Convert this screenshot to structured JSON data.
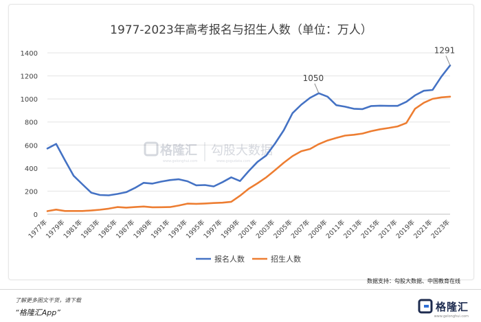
{
  "chart_data": {
    "type": "line",
    "title": "1977-2023年高考报名与招生人数（单位：万人）",
    "ylim": [
      0,
      1400
    ],
    "yticks": [
      0,
      200,
      400,
      600,
      800,
      1000,
      1200,
      1400
    ],
    "x": [
      1977,
      1978,
      1979,
      1980,
      1981,
      1982,
      1983,
      1984,
      1985,
      1986,
      1987,
      1988,
      1989,
      1990,
      1991,
      1992,
      1993,
      1994,
      1995,
      1996,
      1997,
      1998,
      1999,
      2000,
      2001,
      2002,
      2003,
      2004,
      2005,
      2006,
      2007,
      2008,
      2009,
      2010,
      2011,
      2012,
      2013,
      2014,
      2015,
      2016,
      2017,
      2018,
      2019,
      2020,
      2021,
      2022,
      2023
    ],
    "xtick_labels": [
      "1977年",
      "1979年",
      "1981年",
      "1983年",
      "1985年",
      "1987年",
      "1989年",
      "1991年",
      "1993年",
      "1995年",
      "1997年",
      "1999年",
      "2001年",
      "2003年",
      "2005年",
      "2007年",
      "2009年",
      "2011年",
      "2013年",
      "2015年",
      "2017年",
      "2019年",
      "2021年",
      "2023年"
    ],
    "series": [
      {
        "name": "报名人数",
        "color": "#4472C4",
        "values": [
          570,
          610,
          468,
          333,
          259,
          187,
          167,
          164,
          176,
          191,
          228,
          272,
          266,
          283,
          296,
          303,
          286,
          251,
          253,
          241,
          278,
          320,
          288,
          375,
          454,
          510,
          613,
          729,
          877,
          950,
          1010,
          1050,
          1020,
          946,
          933,
          915,
          912,
          939,
          942,
          940,
          940,
          975,
          1031,
          1071,
          1078,
          1193,
          1291
        ]
      },
      {
        "name": "招生人数",
        "color": "#ED7D31",
        "values": [
          27,
          40,
          28,
          28,
          28,
          32,
          39,
          48,
          62,
          57,
          62,
          67,
          60,
          61,
          62,
          75,
          92,
          90,
          93,
          97,
          100,
          108,
          160,
          221,
          268,
          320,
          382,
          447,
          504,
          546,
          566,
          608,
          640,
          662,
          682,
          689,
          700,
          721,
          737,
          748,
          762,
          791,
          915,
          967,
          1001,
          1014,
          1020
        ]
      }
    ],
    "annotations": [
      {
        "x": 2008,
        "label": "1050"
      },
      {
        "x": 2023,
        "label": "1291"
      }
    ],
    "legend_position": "bottom",
    "grid": true
  },
  "watermark": {
    "brand": "格隆汇",
    "brand2": "勾股大数据",
    "site1": "www.gelonghui.com",
    "site2": "www.gogudata.com"
  },
  "source_text": "数据支持：勾股大数据、中国教育在线",
  "footer": {
    "hint": "了解更多图文干货，请下载",
    "app_name": "“格隆汇App”",
    "logo_text": "格隆汇",
    "logo_sub": "www.gelonghui.com"
  },
  "colors": {
    "brand_blue": "#1d2b4f",
    "accent_blue": "#2f6fd6"
  }
}
